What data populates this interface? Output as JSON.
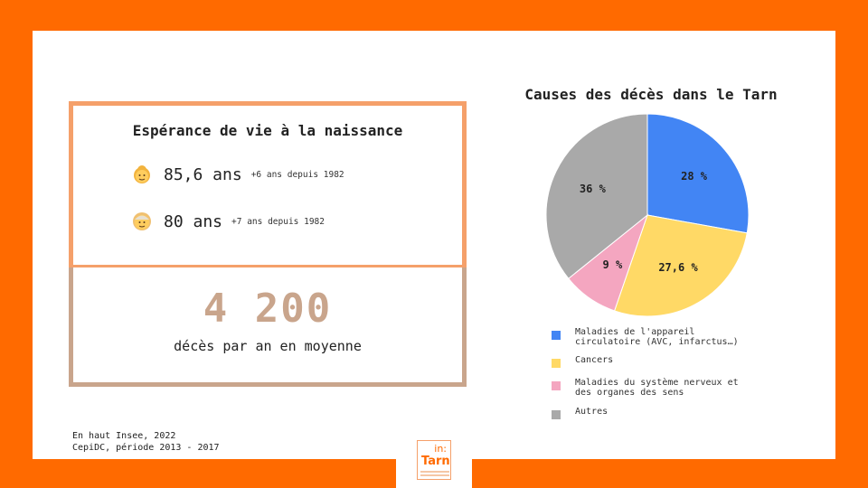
{
  "life_expectancy": {
    "title": "Espérance de vie à la naissance",
    "women": {
      "icon": "old-woman-emoji-icon",
      "value": "85,6 ans",
      "note": "+6 ans depuis 1982"
    },
    "men": {
      "icon": "old-man-emoji-icon",
      "value": "80 ans",
      "note": "+7 ans depuis 1982"
    }
  },
  "deaths": {
    "number": "4 200",
    "caption": "décès par an en moyenne"
  },
  "source": {
    "line1": "En haut Insee, 2022",
    "line2": "CepiDC, période 2013 - 2017"
  },
  "logo": {
    "top": "in:",
    "bottom": "Tarn",
    "icon": "in-tarn-logo-icon"
  },
  "chart_data": {
    "type": "pie",
    "title": "Causes des décès dans le Tarn",
    "categories": [
      "Maladies de l'appareil circulatoire (AVC, infarctus…)",
      "Cancers",
      "Maladies du système nerveux et des organes des sens",
      "Autres"
    ],
    "values": [
      28,
      27.6,
      9,
      36
    ],
    "data_labels": [
      "28 %",
      "27,6 %",
      "9 %",
      "36 %"
    ],
    "colors": [
      "#4285f4",
      "#ffd966",
      "#f4a6c0",
      "#a9a9a9"
    ],
    "legend_placement": "bottom",
    "legend_lines": [
      [
        "Maladies de l'appareil",
        "circulatoire (AVC, infarctus…)"
      ],
      [
        "Cancers"
      ],
      [
        "Maladies du système nerveux et",
        "des organes des sens"
      ],
      [
        "Autres"
      ]
    ]
  },
  "colors": {
    "background": "#ff6a00",
    "life_border": "#f5a06a",
    "deaths_border": "#c9a58c",
    "deaths_number": "#c9a58c"
  }
}
